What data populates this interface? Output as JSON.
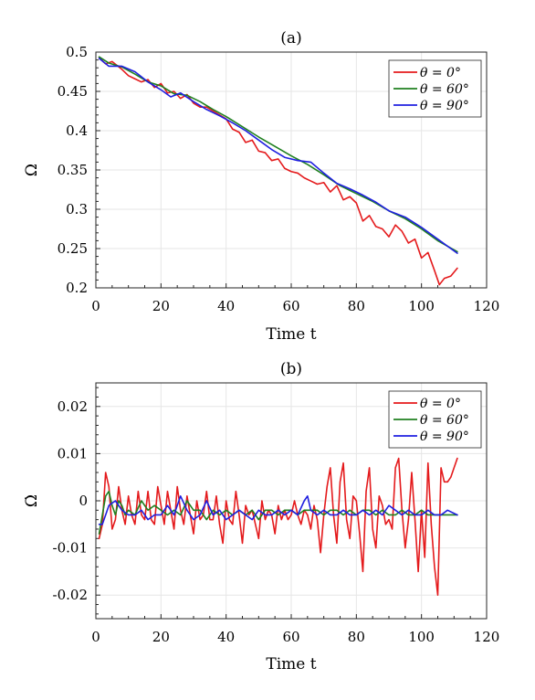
{
  "chart_data": [
    {
      "panel_label": "(a)",
      "type": "line",
      "xlabel": "Time t",
      "ylabel": "Ω",
      "xlim": [
        0,
        120
      ],
      "ylim": [
        0.2,
        0.5
      ],
      "x_ticks": [
        0,
        20,
        40,
        60,
        80,
        100,
        120
      ],
      "x_tick_labels": [
        "0",
        "20",
        "40",
        "60",
        "80",
        "100",
        "120"
      ],
      "y_ticks": [
        0.2,
        0.25,
        0.3,
        0.35,
        0.4,
        0.45,
        0.5
      ],
      "y_tick_labels": [
        "0.2",
        "0.25",
        "0.3",
        "0.35",
        "0.4",
        "0.45",
        "0.5"
      ],
      "grid": true,
      "legend_position": "top-right",
      "series": [
        {
          "name": "θ = 0°",
          "color": "#e41a1c",
          "x": [
            1,
            3,
            5,
            8,
            10,
            12,
            14,
            16,
            18,
            20,
            22,
            24,
            26,
            28,
            30,
            32,
            34,
            36,
            38,
            40,
            42,
            44,
            46,
            48,
            50,
            52,
            54,
            56,
            58,
            60,
            62,
            64,
            66,
            68,
            70,
            72,
            74,
            76,
            78,
            80,
            82,
            84,
            86,
            88,
            90,
            92,
            94,
            96,
            98,
            100,
            102,
            104,
            105.5,
            107,
            109,
            111
          ],
          "values": [
            0.493,
            0.485,
            0.488,
            0.478,
            0.47,
            0.466,
            0.462,
            0.465,
            0.455,
            0.46,
            0.448,
            0.45,
            0.441,
            0.446,
            0.435,
            0.43,
            0.43,
            0.425,
            0.42,
            0.415,
            0.402,
            0.398,
            0.385,
            0.388,
            0.374,
            0.372,
            0.362,
            0.364,
            0.352,
            0.348,
            0.346,
            0.34,
            0.336,
            0.332,
            0.334,
            0.322,
            0.33,
            0.312,
            0.316,
            0.308,
            0.285,
            0.292,
            0.278,
            0.275,
            0.265,
            0.28,
            0.272,
            0.257,
            0.262,
            0.238,
            0.245,
            0.222,
            0.204,
            0.212,
            0.215,
            0.225
          ]
        },
        {
          "name": "θ = 60°",
          "color": "#208020",
          "x": [
            1,
            4,
            8,
            12,
            16,
            20,
            24,
            28,
            32,
            36,
            40,
            45,
            50,
            55,
            60,
            65,
            70,
            75,
            80,
            85,
            90,
            95,
            100,
            105,
            111
          ],
          "values": [
            0.494,
            0.486,
            0.481,
            0.472,
            0.462,
            0.457,
            0.447,
            0.445,
            0.437,
            0.427,
            0.418,
            0.405,
            0.392,
            0.38,
            0.368,
            0.357,
            0.344,
            0.33,
            0.32,
            0.31,
            0.298,
            0.288,
            0.275,
            0.26,
            0.246
          ]
        },
        {
          "name": "θ = 90°",
          "color": "#1f1fe0",
          "x": [
            1,
            4,
            8,
            12,
            16,
            20,
            23,
            26,
            30,
            34,
            38,
            42,
            46,
            50,
            54,
            58,
            62,
            66,
            70,
            74,
            78,
            82,
            86,
            90,
            95,
            100,
            105,
            111
          ],
          "values": [
            0.492,
            0.482,
            0.482,
            0.475,
            0.462,
            0.452,
            0.443,
            0.448,
            0.437,
            0.427,
            0.419,
            0.41,
            0.4,
            0.388,
            0.376,
            0.366,
            0.362,
            0.36,
            0.346,
            0.333,
            0.326,
            0.318,
            0.309,
            0.298,
            0.29,
            0.277,
            0.262,
            0.244
          ]
        }
      ]
    },
    {
      "panel_label": "(b)",
      "type": "line",
      "xlabel": "Time t",
      "ylabel": "Ω̇",
      "xlim": [
        0,
        120
      ],
      "ylim": [
        -0.025,
        0.025
      ],
      "x_ticks": [
        0,
        20,
        40,
        60,
        80,
        100,
        120
      ],
      "x_tick_labels": [
        "0",
        "20",
        "40",
        "60",
        "80",
        "100",
        "120"
      ],
      "y_ticks": [
        -0.02,
        -0.01,
        0,
        0.01,
        0.02
      ],
      "y_tick_labels": [
        "-0.02",
        "-0.01",
        "0",
        "0.01",
        "0.02"
      ],
      "grid": true,
      "legend_position": "top-right",
      "series": [
        {
          "name": "θ = 0°",
          "color": "#e41a1c",
          "x": [
            1,
            2,
            3,
            4,
            5,
            6,
            7,
            8,
            9,
            10,
            11,
            12,
            13,
            14,
            15,
            16,
            17,
            18,
            19,
            20,
            21,
            22,
            23,
            24,
            25,
            26,
            27,
            28,
            29,
            30,
            31,
            32,
            33,
            34,
            35,
            36,
            37,
            38,
            39,
            40,
            41,
            42,
            43,
            44,
            45,
            46,
            47,
            48,
            49,
            50,
            51,
            52,
            53,
            54,
            55,
            56,
            57,
            58,
            59,
            60,
            61,
            62,
            63,
            64,
            65,
            66,
            67,
            68,
            69,
            70,
            71,
            72,
            73,
            74,
            75,
            76,
            77,
            78,
            79,
            80,
            81,
            82,
            83,
            84,
            85,
            86,
            87,
            88,
            89,
            90,
            91,
            92,
            93,
            94,
            95,
            96,
            97,
            98,
            99,
            100,
            101,
            102,
            103,
            104,
            105,
            106,
            107,
            108,
            109,
            110,
            111
          ],
          "values": [
            -0.008,
            -0.005,
            0.006,
            0.003,
            -0.006,
            -0.004,
            0.003,
            -0.002,
            -0.005,
            0.001,
            -0.003,
            -0.005,
            0.002,
            -0.003,
            -0.004,
            0.002,
            -0.004,
            -0.005,
            0.003,
            -0.001,
            -0.005,
            0.002,
            -0.002,
            -0.006,
            0.003,
            -0.002,
            -0.005,
            0.001,
            -0.003,
            -0.007,
            0.0,
            -0.004,
            -0.003,
            0.002,
            -0.004,
            -0.004,
            0.001,
            -0.005,
            -0.009,
            0.0,
            -0.004,
            -0.005,
            0.002,
            -0.003,
            -0.009,
            -0.001,
            -0.003,
            -0.002,
            -0.005,
            -0.008,
            0.0,
            -0.004,
            -0.002,
            -0.003,
            -0.007,
            -0.001,
            -0.004,
            -0.002,
            -0.004,
            -0.003,
            0.0,
            -0.003,
            -0.005,
            -0.002,
            -0.003,
            -0.006,
            -0.001,
            -0.004,
            -0.011,
            -0.003,
            0.003,
            0.007,
            -0.003,
            -0.009,
            0.004,
            0.008,
            -0.004,
            -0.008,
            0.001,
            0.0,
            -0.007,
            -0.015,
            0.002,
            0.007,
            -0.006,
            -0.01,
            0.001,
            -0.001,
            -0.005,
            -0.004,
            -0.006,
            0.007,
            0.009,
            -0.002,
            -0.01,
            -0.004,
            0.006,
            -0.004,
            -0.015,
            -0.002,
            -0.012,
            0.008,
            -0.005,
            -0.014,
            -0.02,
            0.007,
            0.004,
            0.004,
            0.005,
            0.007,
            0.009
          ]
        },
        {
          "name": "θ = 60°",
          "color": "#208020",
          "x": [
            1,
            2,
            3,
            4,
            5,
            6,
            7,
            8,
            9,
            10,
            12,
            14,
            16,
            18,
            20,
            22,
            24,
            26,
            28,
            30,
            32,
            34,
            36,
            38,
            40,
            42,
            44,
            46,
            48,
            50,
            52,
            54,
            56,
            58,
            60,
            62,
            64,
            66,
            68,
            70,
            72,
            74,
            76,
            78,
            80,
            82,
            84,
            86,
            88,
            90,
            92,
            94,
            96,
            98,
            100,
            102,
            104,
            106,
            108,
            111
          ],
          "values": [
            -0.007,
            -0.003,
            0.001,
            0.002,
            -0.001,
            -0.003,
            0.0,
            -0.001,
            -0.003,
            -0.002,
            -0.003,
            0.0,
            -0.002,
            -0.001,
            -0.002,
            -0.003,
            -0.002,
            -0.003,
            0.0,
            -0.002,
            -0.002,
            -0.004,
            -0.002,
            -0.003,
            -0.002,
            -0.003,
            -0.002,
            -0.003,
            -0.002,
            -0.004,
            -0.002,
            -0.002,
            -0.003,
            -0.002,
            -0.002,
            -0.003,
            -0.002,
            -0.002,
            -0.002,
            -0.003,
            -0.002,
            -0.002,
            -0.003,
            -0.002,
            -0.003,
            -0.002,
            -0.002,
            -0.003,
            -0.002,
            -0.003,
            -0.003,
            -0.002,
            -0.003,
            -0.003,
            -0.002,
            -0.003,
            -0.003,
            -0.003,
            -0.003,
            -0.003
          ]
        },
        {
          "name": "θ = 90°",
          "color": "#1f1fe0",
          "x": [
            1,
            2,
            3,
            4,
            6,
            8,
            10,
            12,
            14,
            16,
            18,
            20,
            22,
            24,
            26,
            28,
            30,
            32,
            34,
            36,
            38,
            40,
            42,
            44,
            46,
            48,
            50,
            52,
            54,
            56,
            58,
            60,
            62,
            64,
            65,
            66,
            68,
            70,
            72,
            74,
            76,
            78,
            80,
            82,
            84,
            86,
            88,
            90,
            92,
            94,
            96,
            98,
            100,
            102,
            104,
            106,
            108,
            111
          ],
          "values": [
            -0.005,
            -0.005,
            -0.003,
            -0.001,
            0.0,
            -0.002,
            -0.003,
            -0.003,
            -0.002,
            -0.004,
            -0.003,
            -0.003,
            -0.001,
            -0.003,
            0.001,
            -0.002,
            -0.004,
            -0.003,
            0.0,
            -0.003,
            -0.002,
            -0.004,
            -0.003,
            -0.002,
            -0.003,
            -0.004,
            -0.002,
            -0.003,
            -0.003,
            -0.002,
            -0.003,
            -0.002,
            -0.003,
            0.0,
            0.001,
            -0.002,
            -0.003,
            -0.002,
            -0.003,
            -0.003,
            -0.002,
            -0.003,
            -0.003,
            -0.002,
            -0.003,
            -0.002,
            -0.003,
            -0.001,
            -0.002,
            -0.003,
            -0.002,
            -0.003,
            -0.003,
            -0.002,
            -0.003,
            -0.003,
            -0.002,
            -0.003
          ]
        }
      ]
    }
  ]
}
